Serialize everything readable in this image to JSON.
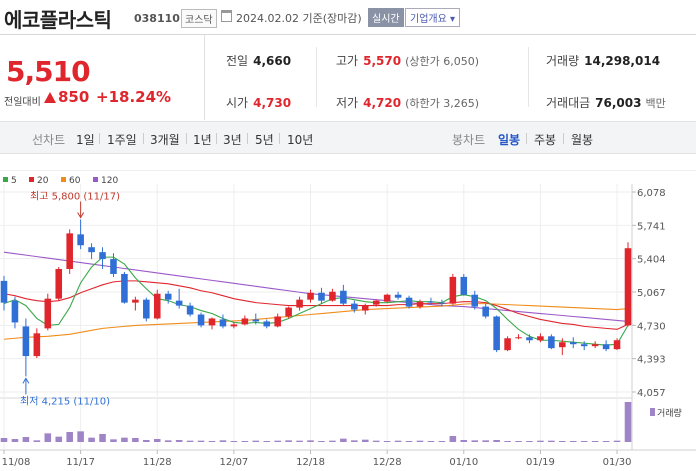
{
  "header": {
    "name": "에코플라스틱",
    "code": "038110",
    "market": "코스닥",
    "date": "2024.02.02 기준(장마감)",
    "realtime_label": "실시간",
    "company_info_label": "기업개요 ▾"
  },
  "quote": {
    "price": "5,510",
    "prev_label": "전일대비",
    "change": "850",
    "change_rate": "+18.24%"
  },
  "stats": {
    "prev_close_label": "전일",
    "prev_close": "4,660",
    "open_label": "시가",
    "open": "4,730",
    "high_label": "고가",
    "high": "5,570",
    "high_limit": "(상한가 6,050)",
    "low_label": "저가",
    "low": "4,720",
    "low_limit": "(하한가 3,265)",
    "volume_label": "거래량",
    "volume": "14,298,014",
    "amount_label": "거래대금",
    "amount": "76,003",
    "amount_unit": "백만"
  },
  "period_bar": {
    "line_label": "선차트",
    "periods": [
      "1일",
      "1주일",
      "3개월",
      "1년",
      "3년",
      "5년",
      "10년"
    ],
    "candle_label": "봉차트",
    "candle_periods": [
      "일봉",
      "주봉",
      "월봉"
    ],
    "active_candle": "일봉"
  },
  "colors": {
    "up": "#e0262d",
    "down": "#2f6fd6",
    "ma5": "#3aa84a",
    "ma20": "#e0262d",
    "ma60": "#f08c1a",
    "ma120": "#9b59c8"
  },
  "chart_data": {
    "type": "candlestick",
    "legend": [
      {
        "name": "5",
        "color": "#3aa84a"
      },
      {
        "name": "20",
        "color": "#e0262d"
      },
      {
        "name": "60",
        "color": "#f08c1a"
      },
      {
        "name": "120",
        "color": "#9b59c8"
      }
    ],
    "ylim": [
      4057,
      6078
    ],
    "y_ticks": [
      "6,078",
      "5,741",
      "5,404",
      "5,067",
      "4,730",
      "4,393",
      "4,057"
    ],
    "x_ticks": [
      {
        "label": "11/08",
        "index": 0
      },
      {
        "label": "11/17",
        "index": 7
      },
      {
        "label": "11/28",
        "index": 14
      },
      {
        "label": "12/07",
        "index": 21
      },
      {
        "label": "12/18",
        "index": 28
      },
      {
        "label": "12/28",
        "index": 35
      },
      {
        "label": "01/10",
        "index": 42
      },
      {
        "label": "01/19",
        "index": 49
      },
      {
        "label": "01/30",
        "index": 56
      }
    ],
    "max_annotation": {
      "label": "최고 5,800 (11/17)",
      "index": 7,
      "value": 5800
    },
    "min_annotation": {
      "label": "최저 4,215 (11/10)",
      "index": 2,
      "value": 4215
    },
    "volume_label": "거래량",
    "ohlc": [
      [
        5180,
        5230,
        4880,
        4960
      ],
      [
        4980,
        5020,
        4700,
        4760
      ],
      [
        4720,
        4800,
        4215,
        4420
      ],
      [
        4420,
        4700,
        4400,
        4650
      ],
      [
        4700,
        5050,
        4680,
        5000
      ],
      [
        5000,
        5320,
        4980,
        5300
      ],
      [
        5300,
        5700,
        5250,
        5660
      ],
      [
        5650,
        5800,
        5500,
        5540
      ],
      [
        5520,
        5560,
        5400,
        5470
      ],
      [
        5470,
        5520,
        5300,
        5400
      ],
      [
        5400,
        5460,
        5220,
        5250
      ],
      [
        5250,
        5270,
        4950,
        4960
      ],
      [
        4960,
        5020,
        4880,
        4990
      ],
      [
        4990,
        5010,
        4770,
        4800
      ],
      [
        4800,
        5090,
        4790,
        5050
      ],
      [
        5050,
        5080,
        4950,
        4990
      ],
      [
        4980,
        5100,
        4900,
        4930
      ],
      [
        4930,
        4960,
        4820,
        4840
      ],
      [
        4840,
        4860,
        4710,
        4730
      ],
      [
        4730,
        4810,
        4690,
        4800
      ],
      [
        4790,
        4840,
        4700,
        4720
      ],
      [
        4720,
        4760,
        4700,
        4740
      ],
      [
        4740,
        4830,
        4730,
        4800
      ],
      [
        4790,
        4850,
        4740,
        4770
      ],
      [
        4770,
        4790,
        4700,
        4720
      ],
      [
        4720,
        4850,
        4710,
        4820
      ],
      [
        4820,
        4920,
        4800,
        4910
      ],
      [
        4910,
        5020,
        4880,
        4990
      ],
      [
        4990,
        5090,
        4960,
        5060
      ],
      [
        5060,
        5110,
        4950,
        4980
      ],
      [
        4980,
        5100,
        4970,
        5070
      ],
      [
        5080,
        5140,
        4930,
        4950
      ],
      [
        4950,
        4980,
        4860,
        4890
      ],
      [
        4880,
        4950,
        4840,
        4930
      ],
      [
        4940,
        4990,
        4920,
        4980
      ],
      [
        4970,
        5050,
        4960,
        5040
      ],
      [
        5040,
        5070,
        4990,
        5010
      ],
      [
        5010,
        5030,
        4900,
        4920
      ],
      [
        4920,
        4990,
        4900,
        4970
      ],
      [
        4970,
        5010,
        4940,
        4960
      ],
      [
        4960,
        4990,
        4920,
        4950
      ],
      [
        4950,
        5250,
        4940,
        5220
      ],
      [
        5220,
        5250,
        5030,
        5040
      ],
      [
        5040,
        5080,
        4890,
        4920
      ],
      [
        4920,
        4950,
        4800,
        4820
      ],
      [
        4820,
        4830,
        4460,
        4480
      ],
      [
        4480,
        4620,
        4470,
        4600
      ],
      [
        4610,
        4640,
        4590,
        4610
      ],
      [
        4610,
        4640,
        4550,
        4580
      ],
      [
        4580,
        4650,
        4560,
        4620
      ],
      [
        4620,
        4640,
        4490,
        4500
      ],
      [
        4510,
        4600,
        4430,
        4560
      ],
      [
        4560,
        4610,
        4500,
        4540
      ],
      [
        4540,
        4570,
        4480,
        4520
      ],
      [
        4520,
        4570,
        4500,
        4540
      ],
      [
        4540,
        4580,
        4470,
        4490
      ],
      [
        4490,
        4600,
        4480,
        4580
      ],
      [
        4730,
        5570,
        4720,
        5510
      ]
    ],
    "ma5": [
      4950,
      4990,
      4930,
      4800,
      4730,
      4740,
      4910,
      5160,
      5320,
      5420,
      5420,
      5350,
      5210,
      5100,
      5000,
      4980,
      4940,
      4920,
      4880,
      4850,
      4800,
      4760,
      4750,
      4760,
      4750,
      4760,
      4800,
      4850,
      4900,
      4950,
      5000,
      5010,
      4990,
      4970,
      4960,
      4960,
      4970,
      4980,
      4970,
      4970,
      4960,
      5020,
      5040,
      5020,
      4980,
      4900,
      4790,
      4690,
      4620,
      4580,
      4580,
      4570,
      4560,
      4550,
      4540,
      4530,
      4540,
      4730
    ],
    "ma20": [
      5050,
      5030,
      5000,
      4980,
      4970,
      4980,
      5010,
      5060,
      5100,
      5140,
      5170,
      5180,
      5180,
      5170,
      5160,
      5150,
      5130,
      5110,
      5080,
      5060,
      5030,
      5000,
      4980,
      4960,
      4950,
      4940,
      4930,
      4930,
      4930,
      4930,
      4930,
      4930,
      4930,
      4930,
      4930,
      4930,
      4940,
      4940,
      4950,
      4950,
      4950,
      4960,
      4970,
      4970,
      4960,
      4930,
      4890,
      4850,
      4820,
      4790,
      4770,
      4750,
      4740,
      4720,
      4710,
      4700,
      4690,
      4740
    ],
    "ma60": [
      4590,
      4600,
      4610,
      4615,
      4620,
      4630,
      4640,
      4660,
      4680,
      4700,
      4710,
      4720,
      4730,
      4735,
      4740,
      4745,
      4750,
      4755,
      4760,
      4765,
      4770,
      4775,
      4780,
      4790,
      4800,
      4810,
      4820,
      4830,
      4840,
      4850,
      4860,
      4870,
      4880,
      4890,
      4895,
      4900,
      4905,
      4910,
      4915,
      4920,
      4925,
      4935,
      4945,
      4950,
      4950,
      4945,
      4940,
      4935,
      4930,
      4925,
      4920,
      4915,
      4910,
      4905,
      4900,
      4895,
      4890,
      4900
    ],
    "ma120": [
      5470,
      5455,
      5440,
      5425,
      5410,
      5395,
      5380,
      5365,
      5350,
      5335,
      5320,
      5305,
      5290,
      5275,
      5260,
      5245,
      5230,
      5215,
      5200,
      5185,
      5170,
      5155,
      5140,
      5125,
      5110,
      5095,
      5080,
      5065,
      5050,
      5040,
      5030,
      5020,
      5010,
      5000,
      4990,
      4980,
      4970,
      4960,
      4950,
      4940,
      4930,
      4925,
      4920,
      4910,
      4900,
      4890,
      4880,
      4870,
      4860,
      4850,
      4840,
      4830,
      4820,
      4810,
      4800,
      4790,
      4780,
      4770
    ],
    "volume": [
      1.2,
      0.9,
      1.5,
      0.5,
      2.6,
      1.6,
      3.0,
      3.2,
      1.3,
      2.4,
      0.8,
      1.3,
      1.2,
      0.6,
      0.9,
      0.5,
      0.6,
      0.4,
      0.4,
      0.3,
      0.5,
      0.3,
      0.3,
      0.4,
      0.3,
      0.4,
      0.5,
      0.4,
      0.5,
      0.3,
      0.4,
      1.0,
      0.5,
      0.7,
      0.4,
      0.3,
      0.4,
      0.3,
      0.4,
      0.3,
      0.3,
      1.8,
      0.6,
      0.5,
      0.5,
      0.6,
      0.3,
      0.3,
      0.3,
      0.4,
      0.4,
      0.3,
      0.3,
      0.3,
      0.3,
      0.3,
      0.4,
      12.0
    ]
  }
}
